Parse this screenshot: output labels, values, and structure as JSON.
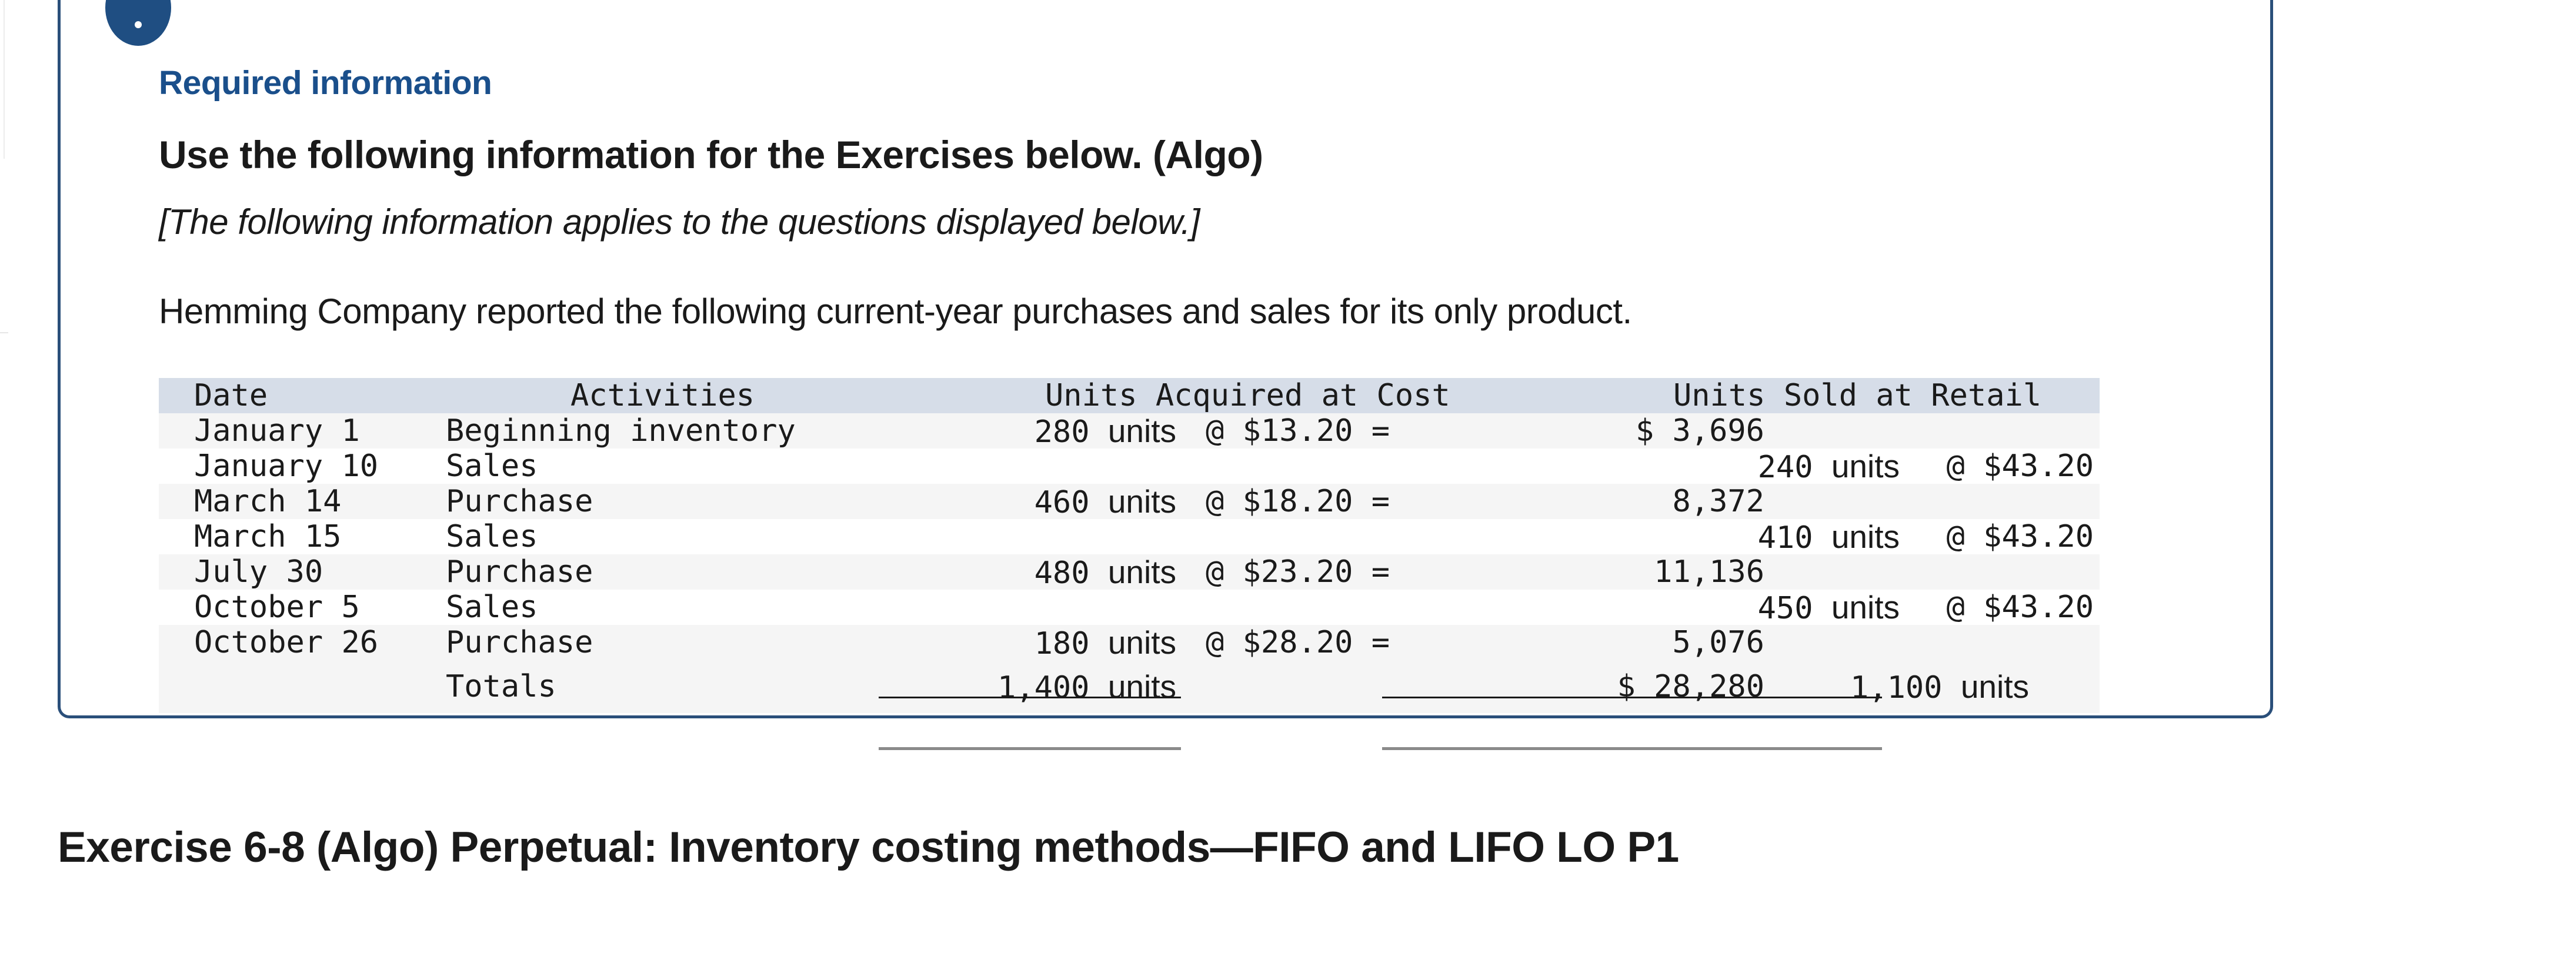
{
  "header": {
    "required_label": "Required information",
    "subtitle": "Use the following information for the Exercises below. (Algo)",
    "note": "[The following information applies to the questions displayed below.]",
    "intro": "Hemming Company reported the following current-year purchases and sales for its only product."
  },
  "table": {
    "headers": {
      "date": "Date",
      "activities": "Activities",
      "acquired": "Units Acquired at Cost",
      "sold": "Units Sold at Retail"
    },
    "rows": [
      {
        "date": "January 1",
        "activity": "Beginning inventory",
        "units": "280",
        "unit_word": "units",
        "cost": "@ $13.20 =",
        "amount": "$ 3,696",
        "sold": "",
        "sold_word": "",
        "retail": ""
      },
      {
        "date": "January 10",
        "activity": "Sales",
        "units": "",
        "unit_word": "",
        "cost": "",
        "amount": "",
        "sold": "240",
        "sold_word": "units",
        "retail": "@ $43.20"
      },
      {
        "date": "March 14",
        "activity": "Purchase",
        "units": "460",
        "unit_word": "units",
        "cost": "@ $18.20 =",
        "amount": "8,372",
        "sold": "",
        "sold_word": "",
        "retail": ""
      },
      {
        "date": "March 15",
        "activity": "Sales",
        "units": "",
        "unit_word": "",
        "cost": "",
        "amount": "",
        "sold": "410",
        "sold_word": "units",
        "retail": "@ $43.20"
      },
      {
        "date": "July 30",
        "activity": "Purchase",
        "units": "480",
        "unit_word": "units",
        "cost": "@ $23.20 =",
        "amount": "11,136",
        "sold": "",
        "sold_word": "",
        "retail": ""
      },
      {
        "date": "October 5",
        "activity": "Sales",
        "units": "",
        "unit_word": "",
        "cost": "",
        "amount": "",
        "sold": "450",
        "sold_word": "units",
        "retail": "@ $43.20"
      },
      {
        "date": "October 26",
        "activity": "Purchase",
        "units": "180",
        "unit_word": "units",
        "cost": "@ $28.20 =",
        "amount": "5,076",
        "sold": "",
        "sold_word": "",
        "retail": ""
      }
    ],
    "totals": {
      "label": "Totals",
      "units": "1,400",
      "unit_word": "units",
      "amount": "$ 28,280",
      "sold": "1,100",
      "sold_word": "units"
    }
  },
  "exercise_title": "Exercise 6-8 (Algo) Perpetual: Inventory costing methods—FIFO and LIFO LO P1"
}
